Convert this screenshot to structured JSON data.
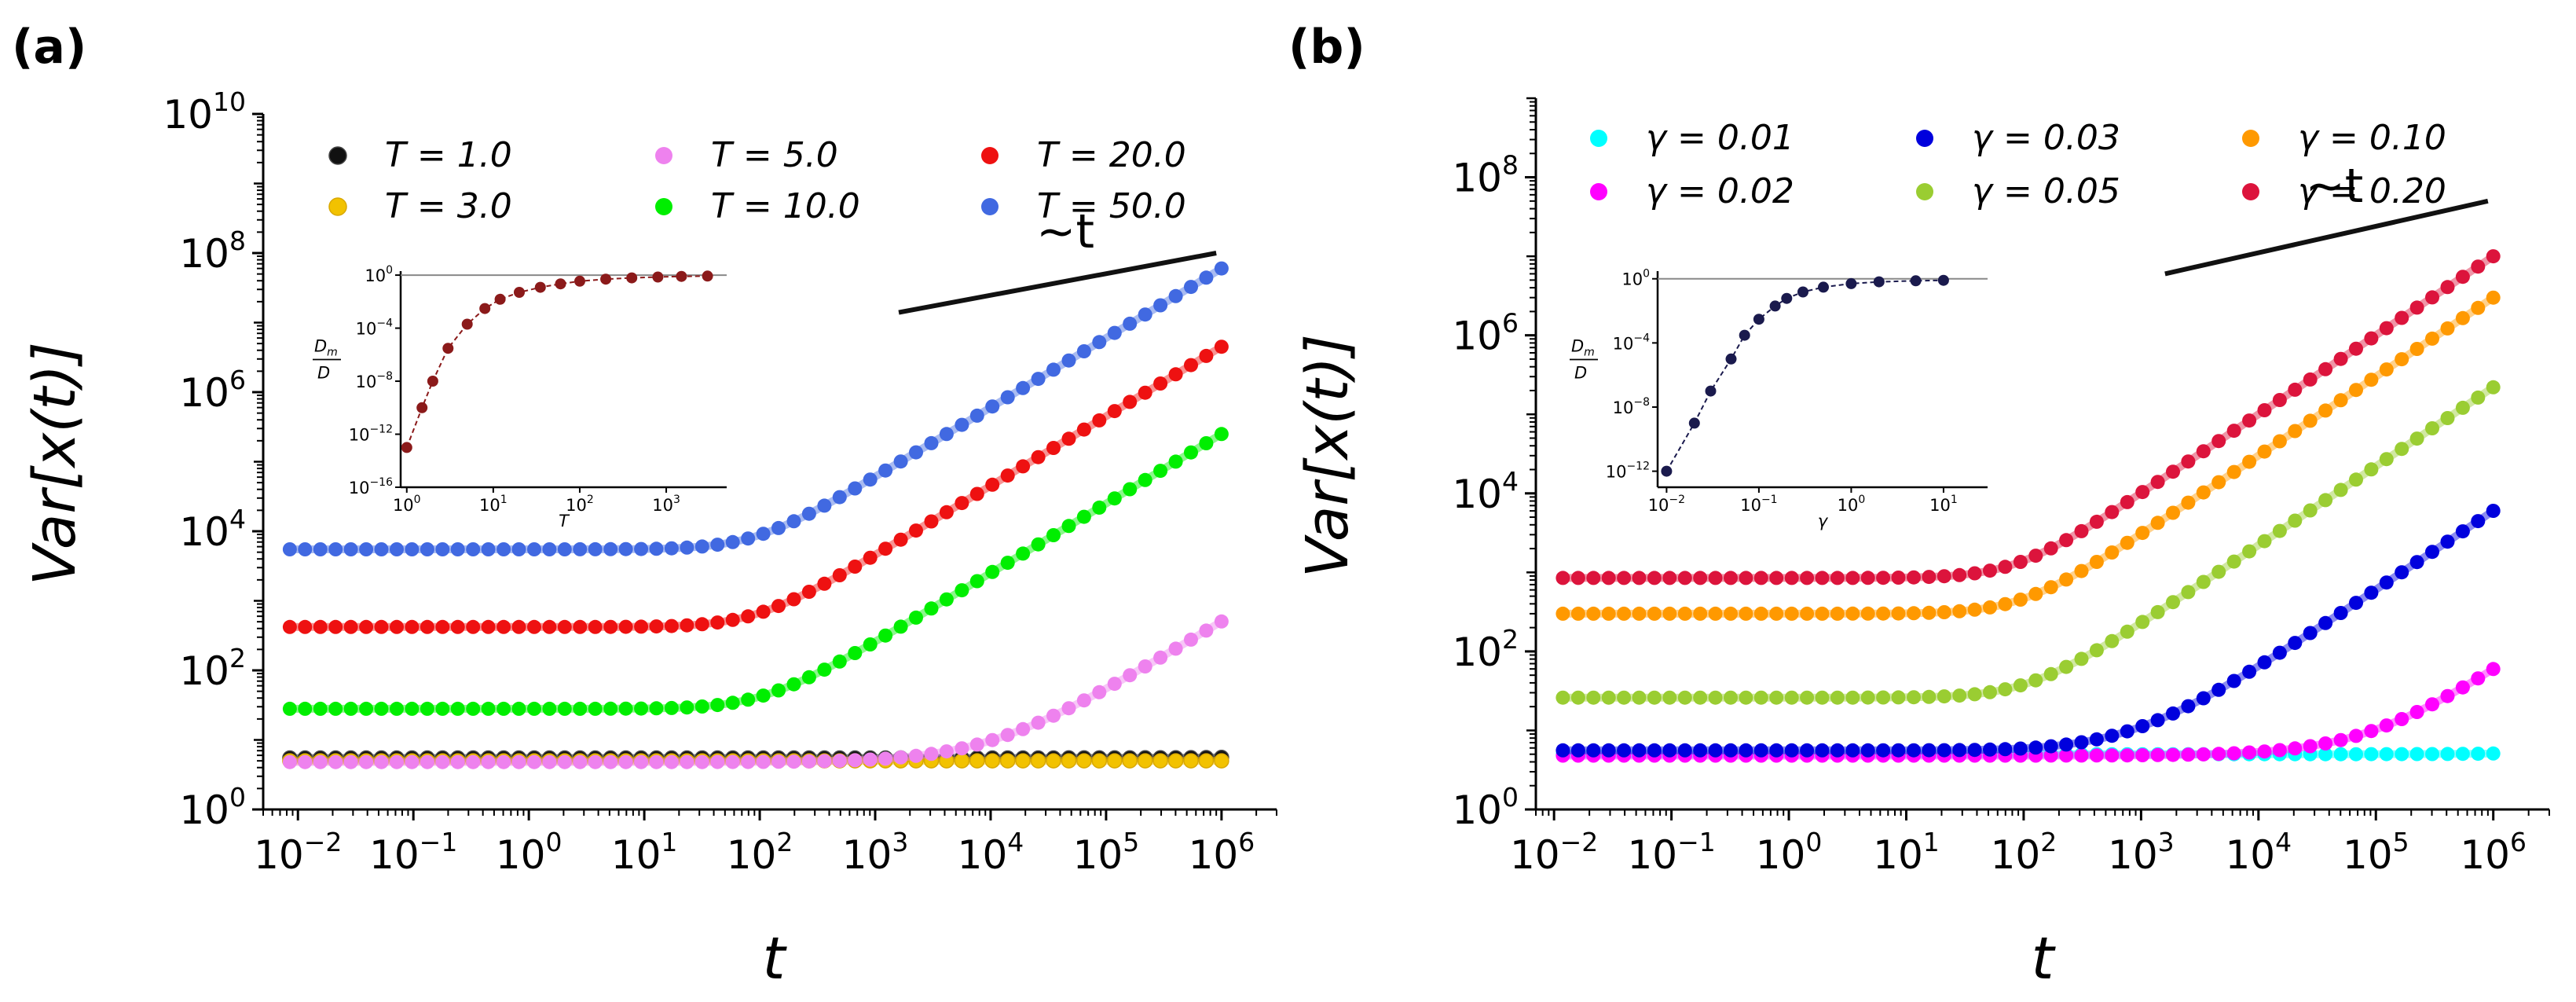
{
  "chart_data": [
    {
      "panel": "(a)",
      "type": "scatter",
      "xlabel": "t",
      "ylabel": "Var[x(t)]",
      "xscale": "log",
      "yscale": "log",
      "xlim": [
        0.005,
        3000000
      ],
      "ylim": [
        1,
        10000000000
      ],
      "xticks": [
        {
          "base": "10",
          "exp": "−2",
          "value": 0.01
        },
        {
          "base": "10",
          "exp": "−1",
          "value": 0.1
        },
        {
          "base": "10",
          "exp": "0",
          "value": 1
        },
        {
          "base": "10",
          "exp": "1",
          "value": 10
        },
        {
          "base": "10",
          "exp": "2",
          "value": 100
        },
        {
          "base": "10",
          "exp": "3",
          "value": 1000
        },
        {
          "base": "10",
          "exp": "4",
          "value": 10000
        },
        {
          "base": "10",
          "exp": "5",
          "value": 100000
        },
        {
          "base": "10",
          "exp": "6",
          "value": 1000000
        }
      ],
      "yticks": [
        {
          "base": "10",
          "exp": "0",
          "value": 1
        },
        {
          "base": "10",
          "exp": "2",
          "value": 100
        },
        {
          "base": "10",
          "exp": "4",
          "value": 10000
        },
        {
          "base": "10",
          "exp": "6",
          "value": 1000000
        },
        {
          "base": "10",
          "exp": "8",
          "value": 100000000
        },
        {
          "base": "10",
          "exp": "10",
          "value": 10000000000
        }
      ],
      "legend_position": "top",
      "series": [
        {
          "name": "T = 1.0",
          "color": "#111111",
          "marker_edge": "#444444",
          "plateau": 5.5,
          "D": 1e-07
        },
        {
          "name": "T = 3.0",
          "color": "#f2c200",
          "marker_edge": "#d9a800",
          "plateau": 5.0,
          "D": 1e-08
        },
        {
          "name": "T = 5.0",
          "color": "#ee82ee",
          "plateau": 4.8,
          "D": 0.0005
        },
        {
          "name": "T = 10.0",
          "color": "#00ee00",
          "plateau": 28,
          "D": 0.25
        },
        {
          "name": "T = 20.0",
          "color": "#ee1111",
          "plateau": 420,
          "D": 4.5
        },
        {
          "name": "T = 50.0",
          "color": "#4169e1",
          "plateau": 5500,
          "D": 60
        }
      ],
      "guide": {
        "label": "~t",
        "x": [
          1600,
          900000
        ],
        "y": [
          14000000,
          100000000
        ]
      },
      "inset": {
        "xlabel": "T",
        "ylabel_num": "D",
        "ylabel_sub": "m",
        "ylabel_den": "D",
        "xlim": [
          0.85,
          5000
        ],
        "ylim": [
          1e-16,
          2
        ],
        "xticks": [
          {
            "base": "10",
            "exp": "0",
            "value": 1
          },
          {
            "base": "10",
            "exp": "1",
            "value": 10
          },
          {
            "base": "10",
            "exp": "2",
            "value": 100
          },
          {
            "base": "10",
            "exp": "3",
            "value": 1000
          }
        ],
        "yticks": [
          {
            "base": "10",
            "exp": "0",
            "value": 1
          },
          {
            "base": "10",
            "exp": "−4",
            "value": 0.0001
          },
          {
            "base": "10",
            "exp": "−8",
            "value": 1e-08
          },
          {
            "base": "10",
            "exp": "−12",
            "value": 1e-12
          },
          {
            "base": "10",
            "exp": "−16",
            "value": 1e-16
          }
        ],
        "color": "#8b1a1a",
        "x": [
          1,
          1.5,
          2,
          3,
          5,
          8,
          12,
          20,
          35,
          60,
          100,
          200,
          400,
          800,
          1500,
          3000
        ],
        "y": [
          1e-13,
          1e-10,
          1e-08,
          3e-06,
          0.0002,
          0.003,
          0.015,
          0.05,
          0.12,
          0.22,
          0.35,
          0.5,
          0.62,
          0.72,
          0.8,
          0.85
        ]
      }
    },
    {
      "panel": "(b)",
      "type": "scatter",
      "xlabel": "t",
      "ylabel": "Var[x(t)]",
      "xscale": "log",
      "yscale": "log",
      "xlim": [
        0.007,
        3000000
      ],
      "ylim": [
        1,
        1000000000
      ],
      "xticks": [
        {
          "base": "10",
          "exp": "−2",
          "value": 0.01
        },
        {
          "base": "10",
          "exp": "−1",
          "value": 0.1
        },
        {
          "base": "10",
          "exp": "0",
          "value": 1
        },
        {
          "base": "10",
          "exp": "1",
          "value": 10
        },
        {
          "base": "10",
          "exp": "2",
          "value": 100
        },
        {
          "base": "10",
          "exp": "3",
          "value": 1000
        },
        {
          "base": "10",
          "exp": "4",
          "value": 10000
        },
        {
          "base": "10",
          "exp": "5",
          "value": 100000
        },
        {
          "base": "10",
          "exp": "6",
          "value": 1000000
        }
      ],
      "yticks": [
        {
          "base": "10",
          "exp": "0",
          "value": 1
        },
        {
          "base": "10",
          "exp": "2",
          "value": 100
        },
        {
          "base": "10",
          "exp": "4",
          "value": 10000
        },
        {
          "base": "10",
          "exp": "6",
          "value": 1000000
        },
        {
          "base": "10",
          "exp": "8",
          "value": 100000000
        }
      ],
      "legend_position": "top",
      "series": [
        {
          "name": "γ = 0.01",
          "color": "#00ffff",
          "plateau": 5.0,
          "D": 1e-07
        },
        {
          "name": "γ = 0.02",
          "color": "#ff00ff",
          "plateau": 4.8,
          "D": 5.5e-05
        },
        {
          "name": "γ = 0.03",
          "color": "#0000dd",
          "plateau": 5.6,
          "D": 0.006
        },
        {
          "name": "γ = 0.05",
          "color": "#9acd32",
          "plateau": 26,
          "D": 0.22
        },
        {
          "name": "γ = 0.10",
          "color": "#ff9900",
          "plateau": 300,
          "D": 3.0
        },
        {
          "name": "γ = 0.20",
          "color": "#dc143c",
          "plateau": 850,
          "D": 10.0
        }
      ],
      "guide": {
        "label": "~t",
        "x": [
          1600,
          900000
        ],
        "y": [
          6000000,
          50000000
        ]
      },
      "inset": {
        "xlabel": "γ",
        "ylabel_num": "D",
        "ylabel_sub": "m",
        "ylabel_den": "D",
        "xlim": [
          0.008,
          30
        ],
        "ylim": [
          1e-13,
          3
        ],
        "xticks": [
          {
            "base": "10",
            "exp": "−2",
            "value": 0.01
          },
          {
            "base": "10",
            "exp": "−1",
            "value": 0.1
          },
          {
            "base": "10",
            "exp": "0",
            "value": 1
          },
          {
            "base": "10",
            "exp": "1",
            "value": 10
          }
        ],
        "yticks": [
          {
            "base": "10",
            "exp": "0",
            "value": 1
          },
          {
            "base": "10",
            "exp": "−4",
            "value": 0.0001
          },
          {
            "base": "10",
            "exp": "−8",
            "value": 1e-08
          },
          {
            "base": "10",
            "exp": "−12",
            "value": 1e-12
          }
        ],
        "color": "#1a1a4d",
        "x": [
          0.01,
          0.02,
          0.03,
          0.05,
          0.07,
          0.1,
          0.15,
          0.2,
          0.3,
          0.5,
          1,
          2,
          5,
          10
        ],
        "y": [
          1e-12,
          1e-09,
          1e-07,
          1e-05,
          0.0003,
          0.003,
          0.02,
          0.06,
          0.15,
          0.3,
          0.5,
          0.65,
          0.75,
          0.8
        ]
      }
    }
  ]
}
